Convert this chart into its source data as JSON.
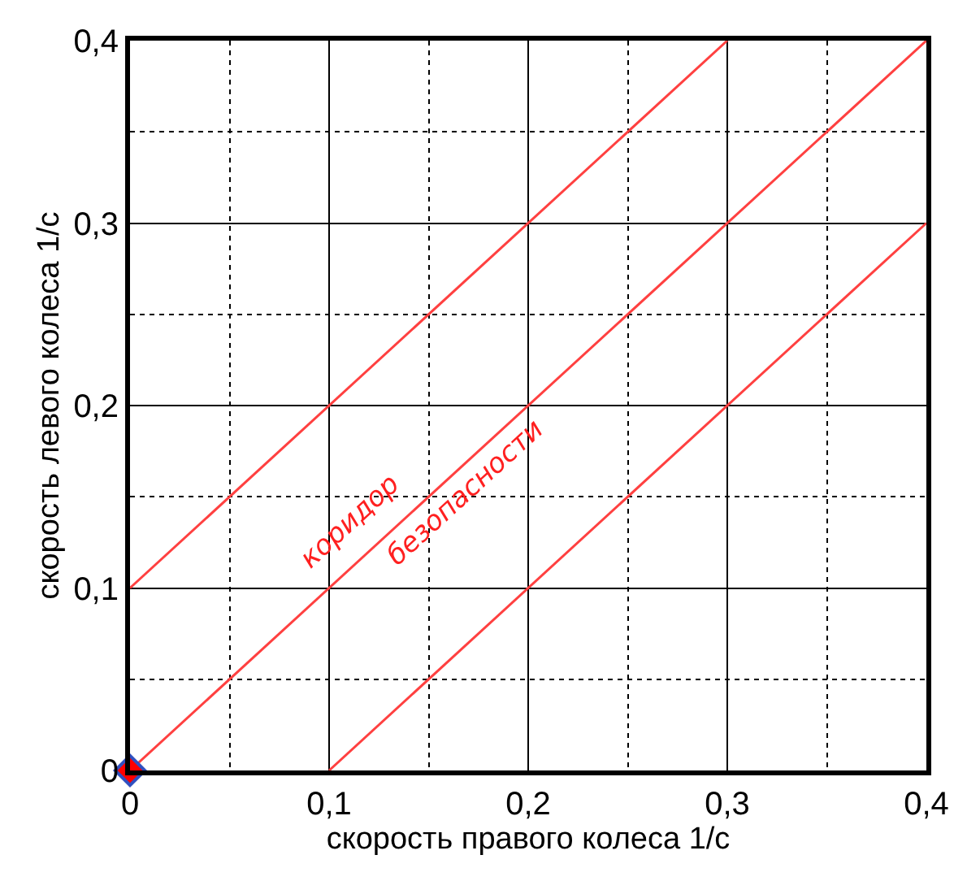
{
  "chart_data": {
    "type": "line",
    "xlabel": "скорость правого колеса 1/с",
    "ylabel": "скорость левого колеса 1/с",
    "xlim": [
      0,
      0.4
    ],
    "ylim": [
      0,
      0.4
    ],
    "xticks": [
      0,
      {
        "value": 0.05,
        "label": null
      },
      {
        "value": 0.1,
        "label": "0,1"
      },
      {
        "value": 0.15,
        "label": null
      },
      {
        "value": 0.2,
        "label": "0,2"
      },
      {
        "value": 0.25,
        "label": null
      },
      {
        "value": 0.3,
        "label": "0,3"
      },
      {
        "value": 0.35,
        "label": null
      },
      {
        "value": 0.4,
        "label": "0,4"
      }
    ],
    "yticks": [
      0,
      {
        "value": 0.05,
        "label": null
      },
      {
        "value": 0.1,
        "label": "0,1"
      },
      {
        "value": 0.15,
        "label": null
      },
      {
        "value": 0.2,
        "label": "0,2"
      },
      {
        "value": 0.25,
        "label": null
      },
      {
        "value": 0.3,
        "label": "0,3"
      },
      {
        "value": 0.35,
        "label": null
      },
      {
        "value": 0.4,
        "label": "0,4"
      }
    ],
    "grid": true,
    "line_style": "solid",
    "series": [
      {
        "color": "#ff4040",
        "x": [
          0,
          0.3
        ],
        "values": [
          0.1,
          0.4
        ]
      },
      {
        "color": "#ff4040",
        "x": [
          0,
          0.4
        ],
        "values": [
          0,
          0.4
        ]
      },
      {
        "color": "#ff4040",
        "x": [
          0.1,
          0.4
        ],
        "values": [
          0,
          0.3
        ]
      },
      {
        "type": "scatter",
        "color": "#ff0000",
        "marker": "diamond",
        "x": [
          0
        ],
        "values": [
          0
        ]
      }
    ],
    "annotations": [
      "коридор",
      "безопасности"
    ]
  }
}
